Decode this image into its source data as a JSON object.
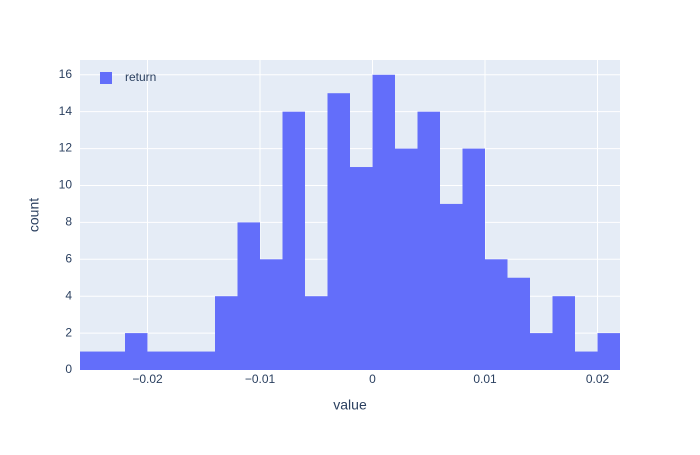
{
  "chart_data": {
    "type": "histogram",
    "xlabel": "value",
    "ylabel": "count",
    "bins": [
      -0.026,
      -0.024,
      -0.022,
      -0.02,
      -0.018,
      -0.016,
      -0.014,
      -0.012,
      -0.01,
      -0.008,
      -0.006,
      -0.004,
      -0.002,
      0,
      0.002,
      0.004,
      0.006,
      0.008,
      0.01,
      0.012,
      0.014,
      0.016,
      0.018,
      0.02,
      0.022
    ],
    "series": [
      {
        "name": "return",
        "color": "#636efa",
        "values": [
          1,
          1,
          2,
          1,
          1,
          1,
          4,
          8,
          6,
          14,
          4,
          15,
          11,
          16,
          12,
          14,
          9,
          12,
          6,
          5,
          2,
          4,
          1,
          2
        ]
      }
    ],
    "xlim": [
      -0.026,
      0.022
    ],
    "xticks": [
      {
        "value": -0.02,
        "label": "−0.02"
      },
      {
        "value": -0.01,
        "label": "−0.01"
      },
      0,
      0.01,
      0.02
    ],
    "ylim": [
      0,
      16.8
    ],
    "yticks": [
      0,
      2,
      4,
      6,
      8,
      10,
      12,
      14,
      16
    ],
    "grid": true,
    "legend": "top-left"
  }
}
